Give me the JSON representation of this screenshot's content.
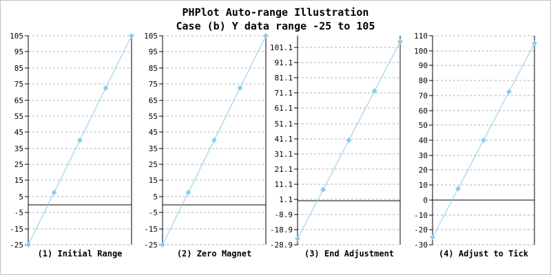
{
  "colors": {
    "line": "#87ceeb",
    "grid": "#afafaf",
    "axis": "#000000",
    "text": "#000000",
    "background": "#ffffff",
    "border": "#c0c0c0"
  },
  "chart_data": {
    "type": "line",
    "title": "PHPlot Auto-range Illustration",
    "subtitle": "Case (b) Y data range -25 to 105",
    "values": [
      -25,
      7.5,
      40,
      72.5,
      105
    ],
    "marker": "diamond",
    "grid": "dashed horizontal line at every y tick",
    "legend": "none",
    "panels": [
      {
        "title": "(1) Initial Range",
        "ylim": [
          -25,
          105
        ],
        "zero_line": true,
        "ytick_labels": [
          "105",
          "95",
          "85",
          "75",
          "65",
          "55",
          "45",
          "35",
          "25",
          "15",
          "5",
          "-5",
          "-15",
          "-25"
        ]
      },
      {
        "title": "(2) Zero Magnet",
        "ylim": [
          -25,
          105
        ],
        "zero_line": true,
        "ytick_labels": [
          "105",
          "95",
          "85",
          "75",
          "65",
          "55",
          "45",
          "35",
          "25",
          "15",
          "5",
          "-5",
          "-15",
          "-25"
        ]
      },
      {
        "title": "(3) End Adjustment",
        "ylim": [
          -28.9,
          108.9
        ],
        "zero_line": true,
        "ytick_labels": [
          "101.1",
          "91.1",
          "81.1",
          "71.1",
          "61.1",
          "51.1",
          "41.1",
          "31.1",
          "21.1",
          "11.1",
          "1.1",
          "-8.9",
          "-18.9",
          "-28.9"
        ]
      },
      {
        "title": "(4) Adjust to Tick",
        "ylim": [
          -30,
          110
        ],
        "zero_line": true,
        "ytick_labels": [
          "110",
          "100",
          "90",
          "80",
          "70",
          "60",
          "50",
          "40",
          "30",
          "20",
          "10",
          "0",
          "-10",
          "-20",
          "-30"
        ]
      }
    ]
  }
}
